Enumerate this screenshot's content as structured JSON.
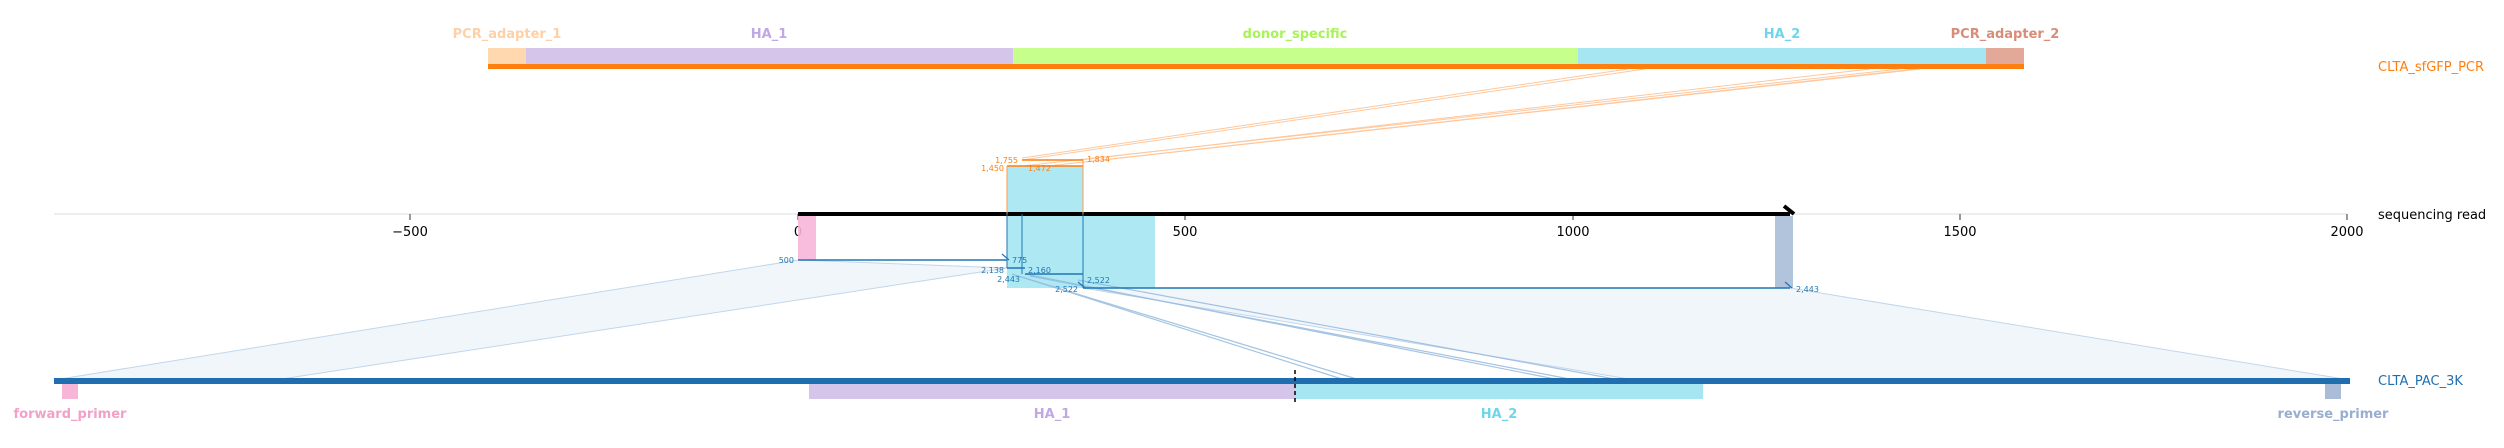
{
  "top_read": {
    "name": "CLTA_sfGFP_PCR",
    "color": "#ff7f0e",
    "features": [
      {
        "label": "PCR_adapter_1",
        "color": "#ffd8b0"
      },
      {
        "label": "HA_1",
        "color": "#d5c5ea"
      },
      {
        "label": "donor_specific",
        "color": "#c6ff8c"
      },
      {
        "label": "HA_2",
        "color": "#a5e6f2"
      },
      {
        "label": "PCR_adapter_2",
        "color": "#e2a898"
      }
    ]
  },
  "middle_read": {
    "name": "sequencing read",
    "ticks": [
      "−500",
      "0",
      "500",
      "1000",
      "1500",
      "2000"
    ]
  },
  "bottom_read": {
    "name": "CLTA_PAC_3K",
    "color": "#1f6fb0",
    "features": [
      {
        "label": "forward_primer",
        "color": "#f7b6d8"
      },
      {
        "label": "HA_1",
        "color": "#d5c5ea"
      },
      {
        "label": "HA_2",
        "color": "#a5e6f2"
      },
      {
        "label": "reverse_primer",
        "color": "#aabcd8"
      }
    ]
  },
  "alignment_labels": {
    "top": [
      "1,755",
      "1,450",
      "1,472",
      "1,834"
    ],
    "bottom": [
      "500",
      "2,138",
      "2,443",
      "775",
      "2,160",
      "2,522",
      "2,522",
      "2,443"
    ]
  }
}
